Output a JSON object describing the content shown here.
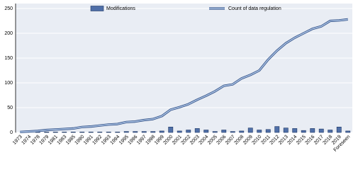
{
  "chart_data": {
    "type": "combo",
    "categories": [
      "1973",
      "1974",
      "1978",
      "1979",
      "1981",
      "1983",
      "1985",
      "1990",
      "1991",
      "1992",
      "1993",
      "1994",
      "1995",
      "1996",
      "1997",
      "1998",
      "1999",
      "2000",
      "2001",
      "2002",
      "2003",
      "2004",
      "2005",
      "2006",
      "2007",
      "2008",
      "2009",
      "2010",
      "2011",
      "2012",
      "2013",
      "2014",
      "2015",
      "2016",
      "2017",
      "2018",
      "2019",
      "Foreseen"
    ],
    "series": [
      {
        "name": "Modifications",
        "type": "bar",
        "color": "#4f6fa8",
        "values": [
          0,
          0,
          1,
          1,
          1,
          1,
          1,
          1,
          1,
          1,
          1,
          1,
          2,
          2,
          2,
          2,
          3,
          11,
          3,
          5,
          8,
          5,
          2,
          5,
          2,
          3,
          9,
          5,
          6,
          12,
          9,
          8,
          4,
          8,
          7,
          5,
          11,
          3
        ]
      },
      {
        "name": "Count of data regulation",
        "type": "line",
        "color": "#a8bfe0",
        "values": [
          1,
          2,
          3,
          5,
          6,
          7,
          8,
          11,
          12,
          14,
          16,
          17,
          21,
          22,
          25,
          27,
          33,
          46,
          51,
          57,
          66,
          74,
          83,
          94,
          97,
          109,
          116,
          125,
          147,
          165,
          180,
          191,
          200,
          209,
          214,
          225,
          226,
          228
        ]
      }
    ],
    "ylim": [
      0,
      250
    ],
    "yticks": [
      0,
      50,
      100,
      150,
      200,
      250
    ],
    "grid": true,
    "legend": "top"
  }
}
